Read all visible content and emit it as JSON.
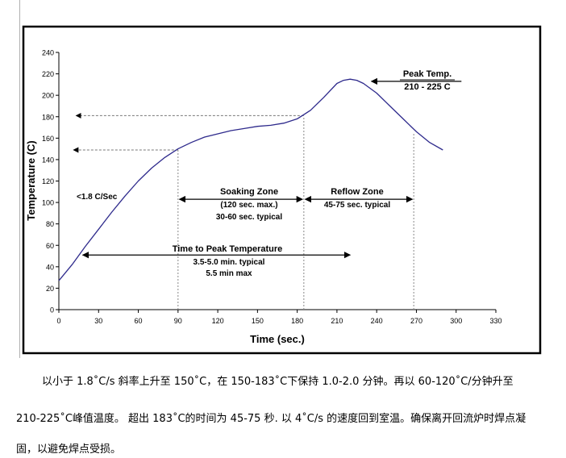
{
  "chart_data": {
    "type": "line",
    "xlabel": "Time (sec.)",
    "ylabel": "Temperature (C)",
    "xlim": [
      0,
      330
    ],
    "ylim": [
      0,
      240
    ],
    "xticks": [
      0,
      30,
      60,
      90,
      120,
      150,
      180,
      210,
      240,
      270,
      300,
      330
    ],
    "yticks": [
      0,
      20,
      40,
      60,
      80,
      100,
      120,
      140,
      160,
      180,
      200,
      220,
      240
    ],
    "grid": false,
    "series": [
      {
        "color": "#2e2a8c",
        "x": [
          0,
          10,
          20,
          30,
          40,
          50,
          60,
          70,
          80,
          90,
          100,
          110,
          120,
          130,
          140,
          150,
          160,
          170,
          180,
          190,
          200,
          210,
          215,
          220,
          225,
          230,
          240,
          250,
          260,
          270,
          280,
          290
        ],
        "y": [
          27,
          42,
          59,
          75,
          91,
          106,
          120,
          132,
          142,
          150,
          156,
          161,
          164,
          167,
          169,
          171,
          172,
          174,
          178,
          186,
          198,
          211,
          214,
          215,
          214,
          211,
          202,
          190,
          178,
          166,
          156,
          149
        ]
      }
    ],
    "guides": [
      {
        "x": 90,
        "y_from": 0,
        "y_to": 150
      },
      {
        "x": 185,
        "y_from": 0,
        "y_to": 180
      },
      {
        "x": 268,
        "y_from": 0,
        "y_to": 165
      }
    ],
    "annotations": {
      "peak": {
        "title": "Peak Temp.",
        "range": "210 - 225 C"
      },
      "ramp": "<1.8 C/Sec",
      "soak": {
        "title": "Soaking Zone",
        "line1": "(120 sec. max.)",
        "line2": "30-60 sec. typical"
      },
      "reflow": {
        "title": "Reflow Zone",
        "line1": "45-75 sec. typical"
      },
      "time_to_peak": {
        "title": "Time to Peak Temperature",
        "line1": "3.5-5.0 min. typical",
        "line2": "5.5 min max"
      }
    }
  },
  "text": {
    "line1": "以小于 1.8˚C/s 斜率上升至 150˚C，在 150-183˚C下保持 1.0-2.0 分钟。再以 60-120˚C/分钟升至",
    "line2": "210-225˚C峰值温度。 超出 183˚C的时间为 45-75 秒. 以 4˚C/s 的速度回到室温。确保离开回流炉时焊点凝",
    "line3": "固，以避免焊点受损。"
  }
}
